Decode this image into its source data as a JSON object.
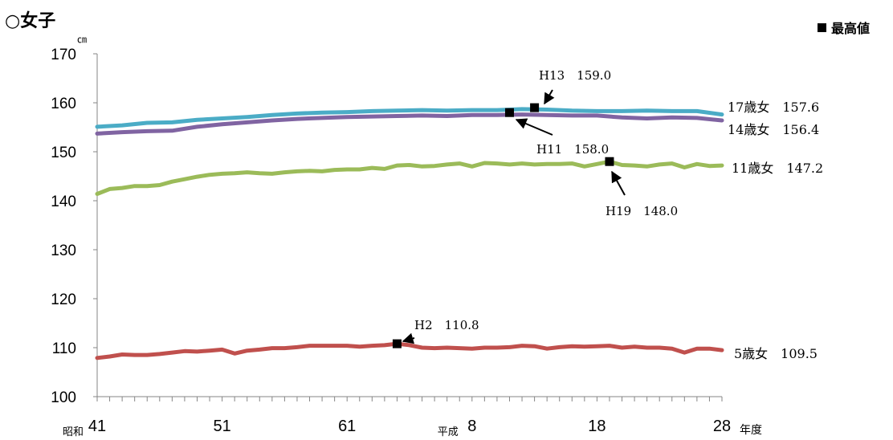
{
  "header": {
    "title": "○女子"
  },
  "legend": {
    "label": "最高値",
    "marker_color": "#000000"
  },
  "chart_data": {
    "type": "line",
    "title": "○女子",
    "ylabel_unit": "㎝",
    "xlabel": "年度",
    "ylim": [
      100,
      170
    ],
    "yticks": [
      100,
      110,
      120,
      130,
      140,
      150,
      160,
      170
    ],
    "x_range": [
      1966,
      2016
    ],
    "x_ticks": [
      {
        "x": 1966,
        "prefix": "昭和",
        "label": "41"
      },
      {
        "x": 1976,
        "prefix": "",
        "label": "51"
      },
      {
        "x": 1986,
        "prefix": "",
        "label": "61"
      },
      {
        "x": 1996,
        "prefix": "平成",
        "label": "8"
      },
      {
        "x": 2006,
        "prefix": "",
        "label": "18"
      },
      {
        "x": 2016,
        "prefix": "",
        "label": "28"
      }
    ],
    "series": [
      {
        "name": "17歳女",
        "end_label": "17歳女　157.6",
        "color": "#4bacc6",
        "points": [
          [
            1966,
            155.1
          ],
          [
            1968,
            155.4
          ],
          [
            1970,
            155.9
          ],
          [
            1972,
            156.0
          ],
          [
            1974,
            156.5
          ],
          [
            1976,
            156.8
          ],
          [
            1978,
            157.1
          ],
          [
            1980,
            157.5
          ],
          [
            1982,
            157.8
          ],
          [
            1984,
            158.0
          ],
          [
            1986,
            158.1
          ],
          [
            1988,
            158.3
          ],
          [
            1990,
            158.4
          ],
          [
            1992,
            158.5
          ],
          [
            1994,
            158.4
          ],
          [
            1996,
            158.5
          ],
          [
            1998,
            158.5
          ],
          [
            2000,
            158.7
          ],
          [
            2002,
            158.6
          ],
          [
            2004,
            158.4
          ],
          [
            2006,
            158.3
          ],
          [
            2008,
            158.3
          ],
          [
            2010,
            158.4
          ],
          [
            2012,
            158.3
          ],
          [
            2014,
            158.3
          ],
          [
            2016,
            157.6
          ]
        ]
      },
      {
        "name": "14歳女",
        "end_label": "14歳女　156.4",
        "color": "#8064a2",
        "points": [
          [
            1966,
            153.7
          ],
          [
            1968,
            154.0
          ],
          [
            1970,
            154.2
          ],
          [
            1972,
            154.3
          ],
          [
            1974,
            155.1
          ],
          [
            1976,
            155.6
          ],
          [
            1978,
            156.0
          ],
          [
            1980,
            156.4
          ],
          [
            1982,
            156.7
          ],
          [
            1984,
            156.9
          ],
          [
            1986,
            157.1
          ],
          [
            1988,
            157.2
          ],
          [
            1990,
            157.3
          ],
          [
            1992,
            157.4
          ],
          [
            1994,
            157.3
          ],
          [
            1996,
            157.5
          ],
          [
            1998,
            157.5
          ],
          [
            2000,
            157.6
          ],
          [
            2002,
            157.5
          ],
          [
            2004,
            157.4
          ],
          [
            2006,
            157.4
          ],
          [
            2008,
            157.0
          ],
          [
            2010,
            156.8
          ],
          [
            2012,
            157.0
          ],
          [
            2014,
            156.9
          ],
          [
            2016,
            156.4
          ]
        ]
      },
      {
        "name": "11歳女",
        "end_label": "11歳女　147.2",
        "color": "#9bbb59",
        "points": [
          [
            1966,
            141.4
          ],
          [
            1967,
            142.4
          ],
          [
            1968,
            142.6
          ],
          [
            1969,
            143.0
          ],
          [
            1970,
            143.0
          ],
          [
            1971,
            143.2
          ],
          [
            1972,
            143.9
          ],
          [
            1973,
            144.4
          ],
          [
            1974,
            144.9
          ],
          [
            1975,
            145.3
          ],
          [
            1976,
            145.5
          ],
          [
            1977,
            145.6
          ],
          [
            1978,
            145.8
          ],
          [
            1979,
            145.6
          ],
          [
            1980,
            145.5
          ],
          [
            1981,
            145.8
          ],
          [
            1982,
            146.0
          ],
          [
            1983,
            146.1
          ],
          [
            1984,
            146.0
          ],
          [
            1985,
            146.3
          ],
          [
            1986,
            146.4
          ],
          [
            1987,
            146.4
          ],
          [
            1988,
            146.7
          ],
          [
            1989,
            146.5
          ],
          [
            1990,
            147.2
          ],
          [
            1991,
            147.3
          ],
          [
            1992,
            147.0
          ],
          [
            1993,
            147.1
          ],
          [
            1994,
            147.4
          ],
          [
            1995,
            147.6
          ],
          [
            1996,
            147.0
          ],
          [
            1997,
            147.7
          ],
          [
            1998,
            147.6
          ],
          [
            1999,
            147.4
          ],
          [
            2000,
            147.6
          ],
          [
            2001,
            147.4
          ],
          [
            2002,
            147.5
          ],
          [
            2003,
            147.5
          ],
          [
            2004,
            147.6
          ],
          [
            2005,
            147.0
          ],
          [
            2006,
            147.5
          ],
          [
            2007,
            148.0
          ],
          [
            2008,
            147.3
          ],
          [
            2009,
            147.2
          ],
          [
            2010,
            147.0
          ],
          [
            2011,
            147.4
          ],
          [
            2012,
            147.6
          ],
          [
            2013,
            146.8
          ],
          [
            2014,
            147.5
          ],
          [
            2015,
            147.1
          ],
          [
            2016,
            147.2
          ]
        ]
      },
      {
        "name": "5歳女",
        "end_label": "5歳女　109.5",
        "color": "#c0504d",
        "points": [
          [
            1966,
            107.9
          ],
          [
            1967,
            108.2
          ],
          [
            1968,
            108.6
          ],
          [
            1969,
            108.5
          ],
          [
            1970,
            108.5
          ],
          [
            1971,
            108.7
          ],
          [
            1972,
            109.0
          ],
          [
            1973,
            109.3
          ],
          [
            1974,
            109.2
          ],
          [
            1975,
            109.4
          ],
          [
            1976,
            109.6
          ],
          [
            1977,
            108.8
          ],
          [
            1978,
            109.4
          ],
          [
            1979,
            109.6
          ],
          [
            1980,
            109.9
          ],
          [
            1981,
            109.9
          ],
          [
            1982,
            110.1
          ],
          [
            1983,
            110.4
          ],
          [
            1984,
            110.4
          ],
          [
            1985,
            110.4
          ],
          [
            1986,
            110.4
          ],
          [
            1987,
            110.2
          ],
          [
            1988,
            110.4
          ],
          [
            1989,
            110.5
          ],
          [
            1990,
            110.8
          ],
          [
            1991,
            110.5
          ],
          [
            1992,
            110.0
          ],
          [
            1993,
            109.9
          ],
          [
            1994,
            110.0
          ],
          [
            1995,
            109.9
          ],
          [
            1996,
            109.8
          ],
          [
            1997,
            110.0
          ],
          [
            1998,
            110.0
          ],
          [
            1999,
            110.1
          ],
          [
            2000,
            110.4
          ],
          [
            2001,
            110.3
          ],
          [
            2002,
            109.8
          ],
          [
            2003,
            110.1
          ],
          [
            2004,
            110.3
          ],
          [
            2005,
            110.2
          ],
          [
            2006,
            110.3
          ],
          [
            2007,
            110.4
          ],
          [
            2008,
            110.0
          ],
          [
            2009,
            110.2
          ],
          [
            2010,
            110.0
          ],
          [
            2011,
            110.0
          ],
          [
            2012,
            109.8
          ],
          [
            2013,
            109.0
          ],
          [
            2014,
            109.8
          ],
          [
            2015,
            109.8
          ],
          [
            2016,
            109.5
          ]
        ]
      }
    ],
    "peak_annotations": [
      {
        "series": "17歳女",
        "x": 2001,
        "y": 159.0,
        "label": "H13　159.0"
      },
      {
        "series": "14歳女",
        "x": 1999,
        "y": 158.0,
        "label": "H11　158.0"
      },
      {
        "series": "11歳女",
        "x": 2007,
        "y": 148.0,
        "label": "H19　148.0"
      },
      {
        "series": "5歳女",
        "x": 1990,
        "y": 110.8,
        "label": "H2　110.8"
      }
    ]
  }
}
